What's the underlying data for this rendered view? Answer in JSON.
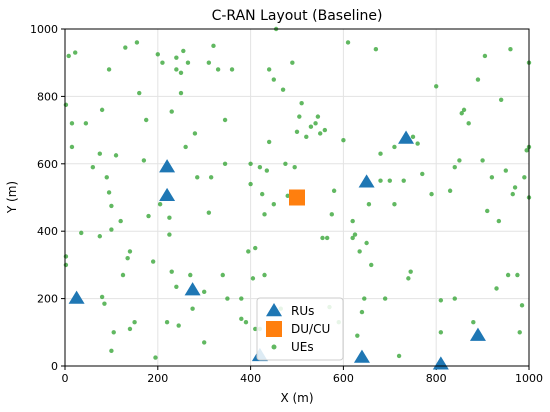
{
  "chart_data": {
    "type": "scatter",
    "title": "C-RAN Layout (Baseline)",
    "xlabel": "X (m)",
    "ylabel": "Y (m)",
    "xlim": [
      0,
      1000
    ],
    "ylim": [
      0,
      1000
    ],
    "xticks": [
      0,
      200,
      400,
      600,
      800,
      1000
    ],
    "yticks": [
      0,
      200,
      400,
      600,
      800,
      1000
    ],
    "grid": true,
    "legend_position": "bottom-center",
    "series": [
      {
        "name": "RUs",
        "marker": "triangle",
        "color": "#1f77b4",
        "points": [
          [
            25,
            200
          ],
          [
            220,
            590
          ],
          [
            220,
            505
          ],
          [
            275,
            225
          ],
          [
            420,
            30
          ],
          [
            640,
            25
          ],
          [
            650,
            545
          ],
          [
            735,
            675
          ],
          [
            810,
            5
          ],
          [
            890,
            90
          ]
        ]
      },
      {
        "name": "DU/CU",
        "marker": "square",
        "color": "#ff7f0e",
        "points": [
          [
            500,
            500
          ]
        ]
      },
      {
        "name": "UEs",
        "marker": "circle",
        "color": "#2ca02c",
        "points": [
          [
            2,
            775
          ],
          [
            2,
            325
          ],
          [
            2,
            300
          ],
          [
            8,
            920
          ],
          [
            15,
            720
          ],
          [
            15,
            650
          ],
          [
            22,
            930
          ],
          [
            35,
            395
          ],
          [
            45,
            720
          ],
          [
            60,
            590
          ],
          [
            75,
            630
          ],
          [
            75,
            385
          ],
          [
            80,
            760
          ],
          [
            80,
            205
          ],
          [
            85,
            185
          ],
          [
            90,
            560
          ],
          [
            95,
            880
          ],
          [
            95,
            515
          ],
          [
            100,
            475
          ],
          [
            100,
            405
          ],
          [
            100,
            45
          ],
          [
            105,
            100
          ],
          [
            110,
            625
          ],
          [
            120,
            430
          ],
          [
            125,
            270
          ],
          [
            130,
            945
          ],
          [
            135,
            320
          ],
          [
            140,
            340
          ],
          [
            140,
            110
          ],
          [
            150,
            130
          ],
          [
            155,
            960
          ],
          [
            160,
            810
          ],
          [
            170,
            610
          ],
          [
            175,
            730
          ],
          [
            180,
            445
          ],
          [
            190,
            310
          ],
          [
            195,
            25
          ],
          [
            200,
            925
          ],
          [
            205,
            480
          ],
          [
            210,
            900
          ],
          [
            220,
            130
          ],
          [
            225,
            440
          ],
          [
            225,
            390
          ],
          [
            230,
            280
          ],
          [
            230,
            755
          ],
          [
            240,
            915
          ],
          [
            240,
            880
          ],
          [
            240,
            235
          ],
          [
            245,
            120
          ],
          [
            250,
            870
          ],
          [
            250,
            810
          ],
          [
            255,
            935
          ],
          [
            260,
            650
          ],
          [
            265,
            900
          ],
          [
            270,
            270
          ],
          [
            275,
            170
          ],
          [
            280,
            690
          ],
          [
            285,
            560
          ],
          [
            300,
            220
          ],
          [
            300,
            70
          ],
          [
            310,
            900
          ],
          [
            310,
            455
          ],
          [
            315,
            560
          ],
          [
            320,
            950
          ],
          [
            330,
            880
          ],
          [
            340,
            270
          ],
          [
            345,
            730
          ],
          [
            345,
            600
          ],
          [
            350,
            200
          ],
          [
            360,
            880
          ],
          [
            380,
            200
          ],
          [
            380,
            140
          ],
          [
            390,
            130
          ],
          [
            395,
            340
          ],
          [
            400,
            600
          ],
          [
            400,
            540
          ],
          [
            405,
            260
          ],
          [
            410,
            350
          ],
          [
            410,
            110
          ],
          [
            420,
            590
          ],
          [
            420,
            110
          ],
          [
            425,
            510
          ],
          [
            430,
            450
          ],
          [
            430,
            270
          ],
          [
            435,
            580
          ],
          [
            440,
            880
          ],
          [
            440,
            665
          ],
          [
            450,
            850
          ],
          [
            450,
            480
          ],
          [
            455,
            1000
          ],
          [
            465,
            170
          ],
          [
            470,
            820
          ],
          [
            475,
            600
          ],
          [
            480,
            505
          ],
          [
            490,
            900
          ],
          [
            495,
            590
          ],
          [
            500,
            695
          ],
          [
            505,
            740
          ],
          [
            510,
            780
          ],
          [
            520,
            680
          ],
          [
            530,
            710
          ],
          [
            540,
            720
          ],
          [
            545,
            740
          ],
          [
            550,
            690
          ],
          [
            555,
            380
          ],
          [
            560,
            700
          ],
          [
            565,
            380
          ],
          [
            570,
            175
          ],
          [
            575,
            450
          ],
          [
            580,
            520
          ],
          [
            590,
            130
          ],
          [
            600,
            670
          ],
          [
            610,
            960
          ],
          [
            620,
            430
          ],
          [
            620,
            380
          ],
          [
            625,
            390
          ],
          [
            630,
            90
          ],
          [
            635,
            340
          ],
          [
            640,
            160
          ],
          [
            645,
            200
          ],
          [
            650,
            365
          ],
          [
            655,
            480
          ],
          [
            660,
            300
          ],
          [
            670,
            940
          ],
          [
            680,
            550
          ],
          [
            680,
            630
          ],
          [
            690,
            200
          ],
          [
            700,
            550
          ],
          [
            710,
            650
          ],
          [
            710,
            480
          ],
          [
            720,
            30
          ],
          [
            730,
            550
          ],
          [
            740,
            260
          ],
          [
            745,
            280
          ],
          [
            750,
            680
          ],
          [
            760,
            660
          ],
          [
            770,
            570
          ],
          [
            790,
            510
          ],
          [
            800,
            830
          ],
          [
            810,
            100
          ],
          [
            810,
            195
          ],
          [
            830,
            520
          ],
          [
            840,
            590
          ],
          [
            840,
            200
          ],
          [
            850,
            610
          ],
          [
            855,
            750
          ],
          [
            860,
            760
          ],
          [
            870,
            720
          ],
          [
            880,
            130
          ],
          [
            890,
            850
          ],
          [
            900,
            610
          ],
          [
            905,
            920
          ],
          [
            910,
            460
          ],
          [
            920,
            560
          ],
          [
            930,
            230
          ],
          [
            935,
            430
          ],
          [
            940,
            790
          ],
          [
            950,
            580
          ],
          [
            955,
            270
          ],
          [
            960,
            940
          ],
          [
            965,
            510
          ],
          [
            970,
            530
          ],
          [
            975,
            270
          ],
          [
            980,
            100
          ],
          [
            985,
            180
          ],
          [
            990,
            560
          ],
          [
            995,
            640
          ],
          [
            1000,
            650
          ],
          [
            1000,
            500
          ],
          [
            1000,
            900
          ]
        ]
      }
    ]
  }
}
